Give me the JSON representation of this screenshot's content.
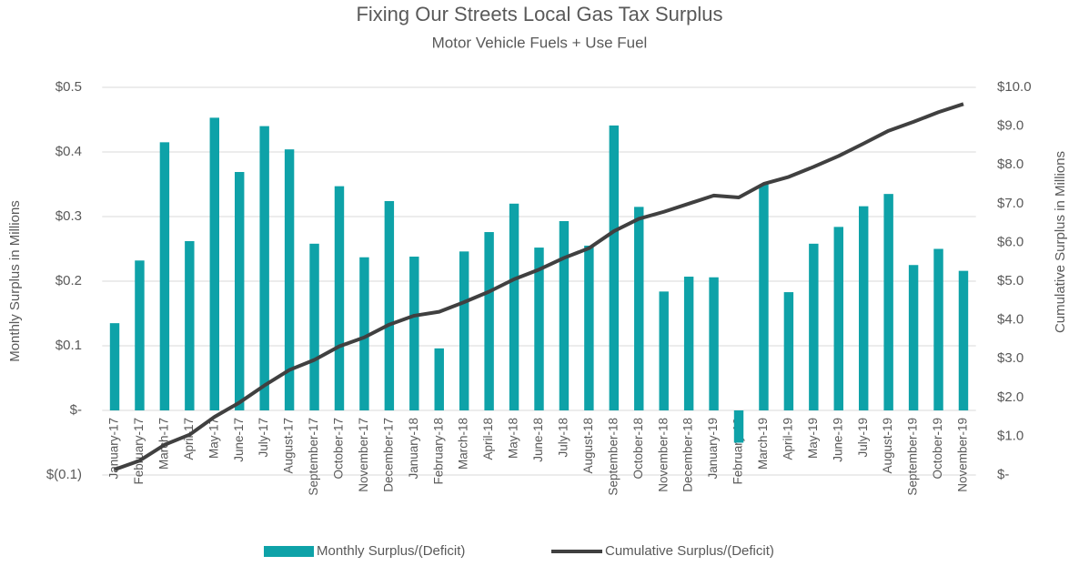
{
  "chart_data": {
    "type": "bar-line",
    "title": "Fixing Our Streets Local Gas Tax Surplus",
    "subtitle": "Motor Vehicle Fuels + Use Fuel",
    "ylabel": "Monthly Surplus in Millions",
    "y2label": "Cumulative Surplus in Millions",
    "categories": [
      "January-17",
      "February-17",
      "March-17",
      "April-17",
      "May-17",
      "June-17",
      "July-17",
      "August-17",
      "September-17",
      "October-17",
      "November-17",
      "December-17",
      "January-18",
      "February-18",
      "March-18",
      "April-18",
      "May-18",
      "June-18",
      "July-18",
      "August-18",
      "September-18",
      "October-18",
      "November-18",
      "December-18",
      "January-19",
      "February-19",
      "March-19",
      "April-19",
      "May-19",
      "June-19",
      "July-19",
      "August-19",
      "September-19",
      "October-19",
      "November-19"
    ],
    "series": [
      {
        "name": "Monthly Surplus/(Deficit)",
        "type": "bar",
        "color": "#0ea2a8",
        "axis": "y",
        "values": [
          0.135,
          0.232,
          0.415,
          0.262,
          0.453,
          0.369,
          0.44,
          0.404,
          0.258,
          0.347,
          0.237,
          0.324,
          0.238,
          0.096,
          0.246,
          0.276,
          0.32,
          0.252,
          0.293,
          0.255,
          0.441,
          0.315,
          0.184,
          0.207,
          0.206,
          -0.05,
          0.35,
          0.183,
          0.258,
          0.284,
          0.316,
          0.335,
          0.225,
          0.25,
          0.216
        ]
      },
      {
        "name": "Cumulative Surplus/(Deficit)",
        "type": "line",
        "color": "#404040",
        "axis": "y2",
        "values": [
          0.14,
          0.37,
          0.78,
          1.04,
          1.5,
          1.87,
          2.31,
          2.71,
          2.97,
          3.32,
          3.55,
          3.88,
          4.11,
          4.21,
          4.46,
          4.73,
          5.05,
          5.3,
          5.6,
          5.85,
          6.29,
          6.61,
          6.79,
          7.0,
          7.21,
          7.16,
          7.51,
          7.69,
          7.95,
          8.23,
          8.55,
          8.88,
          9.11,
          9.36,
          9.57
        ]
      }
    ],
    "ylim": [
      -0.1,
      0.5
    ],
    "yticks": [
      {
        "value": -0.1,
        "label": "$(0.1)"
      },
      {
        "value": 0,
        "label": "$-"
      },
      {
        "value": 0.1,
        "label": "$0.1"
      },
      {
        "value": 0.2,
        "label": "$0.2"
      },
      {
        "value": 0.3,
        "label": "$0.3"
      },
      {
        "value": 0.4,
        "label": "$0.4"
      },
      {
        "value": 0.5,
        "label": "$0.5"
      }
    ],
    "y2lim": [
      0,
      10
    ],
    "y2ticks": [
      {
        "value": 0,
        "label": "$-"
      },
      {
        "value": 1,
        "label": "$1.0"
      },
      {
        "value": 2,
        "label": "$2.0"
      },
      {
        "value": 3,
        "label": "$3.0"
      },
      {
        "value": 4,
        "label": "$4.0"
      },
      {
        "value": 5,
        "label": "$5.0"
      },
      {
        "value": 6,
        "label": "$6.0"
      },
      {
        "value": 7,
        "label": "$7.0"
      },
      {
        "value": 8,
        "label": "$8.0"
      },
      {
        "value": 9,
        "label": "$9.0"
      },
      {
        "value": 10,
        "label": "$10.0"
      }
    ],
    "grid": true,
    "legend": "bottom"
  }
}
